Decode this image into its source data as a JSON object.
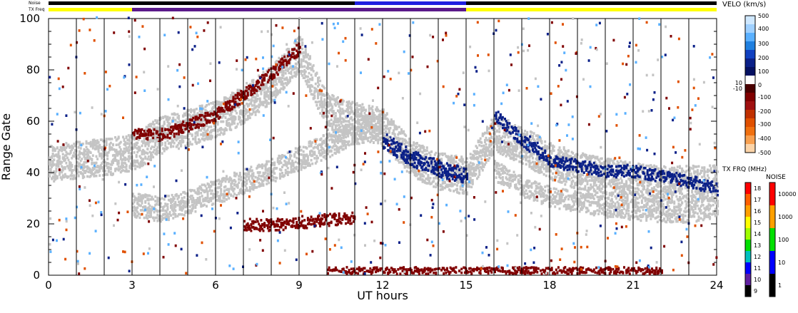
{
  "chart_data": {
    "type": "heatmap",
    "xlabel": "UT hours",
    "ylabel": "Range Gate",
    "xlim": [
      0,
      24
    ],
    "ylim": [
      0,
      100
    ],
    "x_ticks": [
      "0",
      "3",
      "6",
      "9",
      "12",
      "15",
      "18",
      "21",
      "24"
    ],
    "y_ticks": [
      "0",
      "20",
      "40",
      "60",
      "80",
      "100"
    ],
    "x_tick_values": [
      0,
      3,
      6,
      9,
      12,
      15,
      18,
      21,
      24
    ],
    "y_tick_values": [
      0,
      20,
      40,
      60,
      80,
      100
    ],
    "status_bars": {
      "noise_label": "Noise",
      "txfreq_label": "TX Freq",
      "noise_segments": [
        {
          "from": 0,
          "to": 11,
          "color": "#000000"
        },
        {
          "from": 11,
          "to": 15,
          "color": "#2020e0"
        },
        {
          "from": 15,
          "to": 24,
          "color": "#000000"
        }
      ],
      "txfreq_segments": [
        {
          "from": 0,
          "to": 3,
          "color": "#ffff00"
        },
        {
          "from": 3,
          "to": 15,
          "color": "#5a1a8a"
        },
        {
          "from": 15,
          "to": 24,
          "color": "#ffff00"
        }
      ]
    },
    "velocity_scale": {
      "title": "VELO (km/s)",
      "ticks": [
        "500",
        "400",
        "300",
        "200",
        "100",
        "10",
        "0",
        "-10",
        "-100",
        "-200",
        "-300",
        "-400",
        "-500"
      ],
      "colors": [
        "#cfe8ff",
        "#9fd0ff",
        "#5ab0ff",
        "#2080e0",
        "#1040c0",
        "#0a2088",
        "#041060",
        "#ffffff",
        "#4a0000",
        "#800000",
        "#a01010",
        "#c03000",
        "#e05000",
        "#f07010",
        "#f8a050",
        "#fcd4a8"
      ]
    },
    "txfreq_scale": {
      "title": "TX FRQ (MHz)",
      "ticks": [
        "18",
        "17",
        "16",
        "15",
        "14",
        "13",
        "12",
        "11",
        "10",
        "9"
      ],
      "colors": [
        "#ff0000",
        "#ff6000",
        "#ffa000",
        "#ffff00",
        "#a0ff00",
        "#00e000",
        "#00c0c0",
        "#0000ff",
        "#6020a0",
        "#000000"
      ]
    },
    "noise_scale": {
      "title": "NOISE",
      "ticks": [
        "10000",
        "1000",
        "100",
        "10",
        "1"
      ],
      "colors": [
        "#ff0000",
        "#ffa000",
        "#00e000",
        "#0000ff",
        "#000000"
      ]
    },
    "scatter_bands": [
      {
        "name": "ground",
        "color": "#c4c4c4",
        "points": [
          [
            0,
            43
          ],
          [
            1.5,
            45
          ],
          [
            3,
            47
          ],
          [
            4,
            54
          ],
          [
            6,
            60
          ],
          [
            7,
            66
          ],
          [
            8,
            74
          ],
          [
            9,
            86
          ],
          [
            10,
            63
          ],
          [
            11,
            60
          ],
          [
            12,
            57
          ],
          [
            13,
            45
          ],
          [
            14,
            40
          ],
          [
            15,
            38
          ],
          [
            16,
            55
          ],
          [
            17,
            50
          ],
          [
            18,
            44
          ],
          [
            19,
            40
          ],
          [
            20,
            38
          ],
          [
            21,
            36
          ],
          [
            22,
            35
          ],
          [
            23,
            35
          ],
          [
            24,
            35
          ]
        ],
        "width": 9
      },
      {
        "name": "lower",
        "color": "#c4c4c4",
        "points": [
          [
            3,
            27
          ],
          [
            4,
            25
          ],
          [
            5,
            28
          ],
          [
            6,
            32
          ],
          [
            7,
            36
          ],
          [
            8,
            40
          ],
          [
            9,
            45
          ],
          [
            10,
            50
          ],
          [
            11,
            55
          ],
          [
            12,
            58
          ]
        ],
        "width": 6
      },
      {
        "name": "arc",
        "color": "#c4c4c4",
        "points": [
          [
            16,
            40
          ],
          [
            17,
            34
          ],
          [
            18,
            30
          ],
          [
            19,
            28
          ],
          [
            20,
            26
          ],
          [
            21,
            25
          ],
          [
            22,
            24
          ],
          [
            23,
            24
          ],
          [
            24,
            26
          ]
        ],
        "width": 5
      },
      {
        "name": "neg_band_1",
        "color": "#800000",
        "points": [
          [
            7,
            19
          ],
          [
            8,
            19
          ],
          [
            9,
            20
          ],
          [
            10,
            21
          ],
          [
            11,
            22
          ]
        ],
        "width": 3
      },
      {
        "name": "neg_band_2",
        "color": "#800000",
        "points": [
          [
            10,
            1
          ],
          [
            11,
            1
          ],
          [
            12,
            1
          ],
          [
            13,
            1
          ],
          [
            14,
            1
          ],
          [
            15,
            1
          ],
          [
            16,
            1
          ],
          [
            17,
            1
          ],
          [
            18,
            1
          ],
          [
            19,
            1
          ],
          [
            20,
            1
          ],
          [
            21,
            1
          ],
          [
            22,
            1
          ]
        ],
        "width": 2
      },
      {
        "name": "neg_band_3",
        "color": "#800000",
        "points": [
          [
            3,
            55
          ],
          [
            4,
            54
          ],
          [
            5,
            58
          ],
          [
            6,
            62
          ],
          [
            7,
            70
          ],
          [
            8,
            78
          ],
          [
            9,
            88
          ]
        ],
        "width": 3
      },
      {
        "name": "pos_band_1",
        "color": "#0a2088",
        "points": [
          [
            12,
            52
          ],
          [
            13,
            45
          ],
          [
            14,
            41
          ],
          [
            15,
            38
          ]
        ],
        "width": 4
      },
      {
        "name": "pos_band_2",
        "color": "#0a2088",
        "points": [
          [
            16,
            62
          ],
          [
            17,
            52
          ],
          [
            18,
            44
          ],
          [
            19,
            42
          ],
          [
            20,
            40
          ],
          [
            21,
            40
          ],
          [
            22,
            38
          ],
          [
            23,
            36
          ],
          [
            24,
            33
          ]
        ],
        "width": 3
      }
    ]
  }
}
